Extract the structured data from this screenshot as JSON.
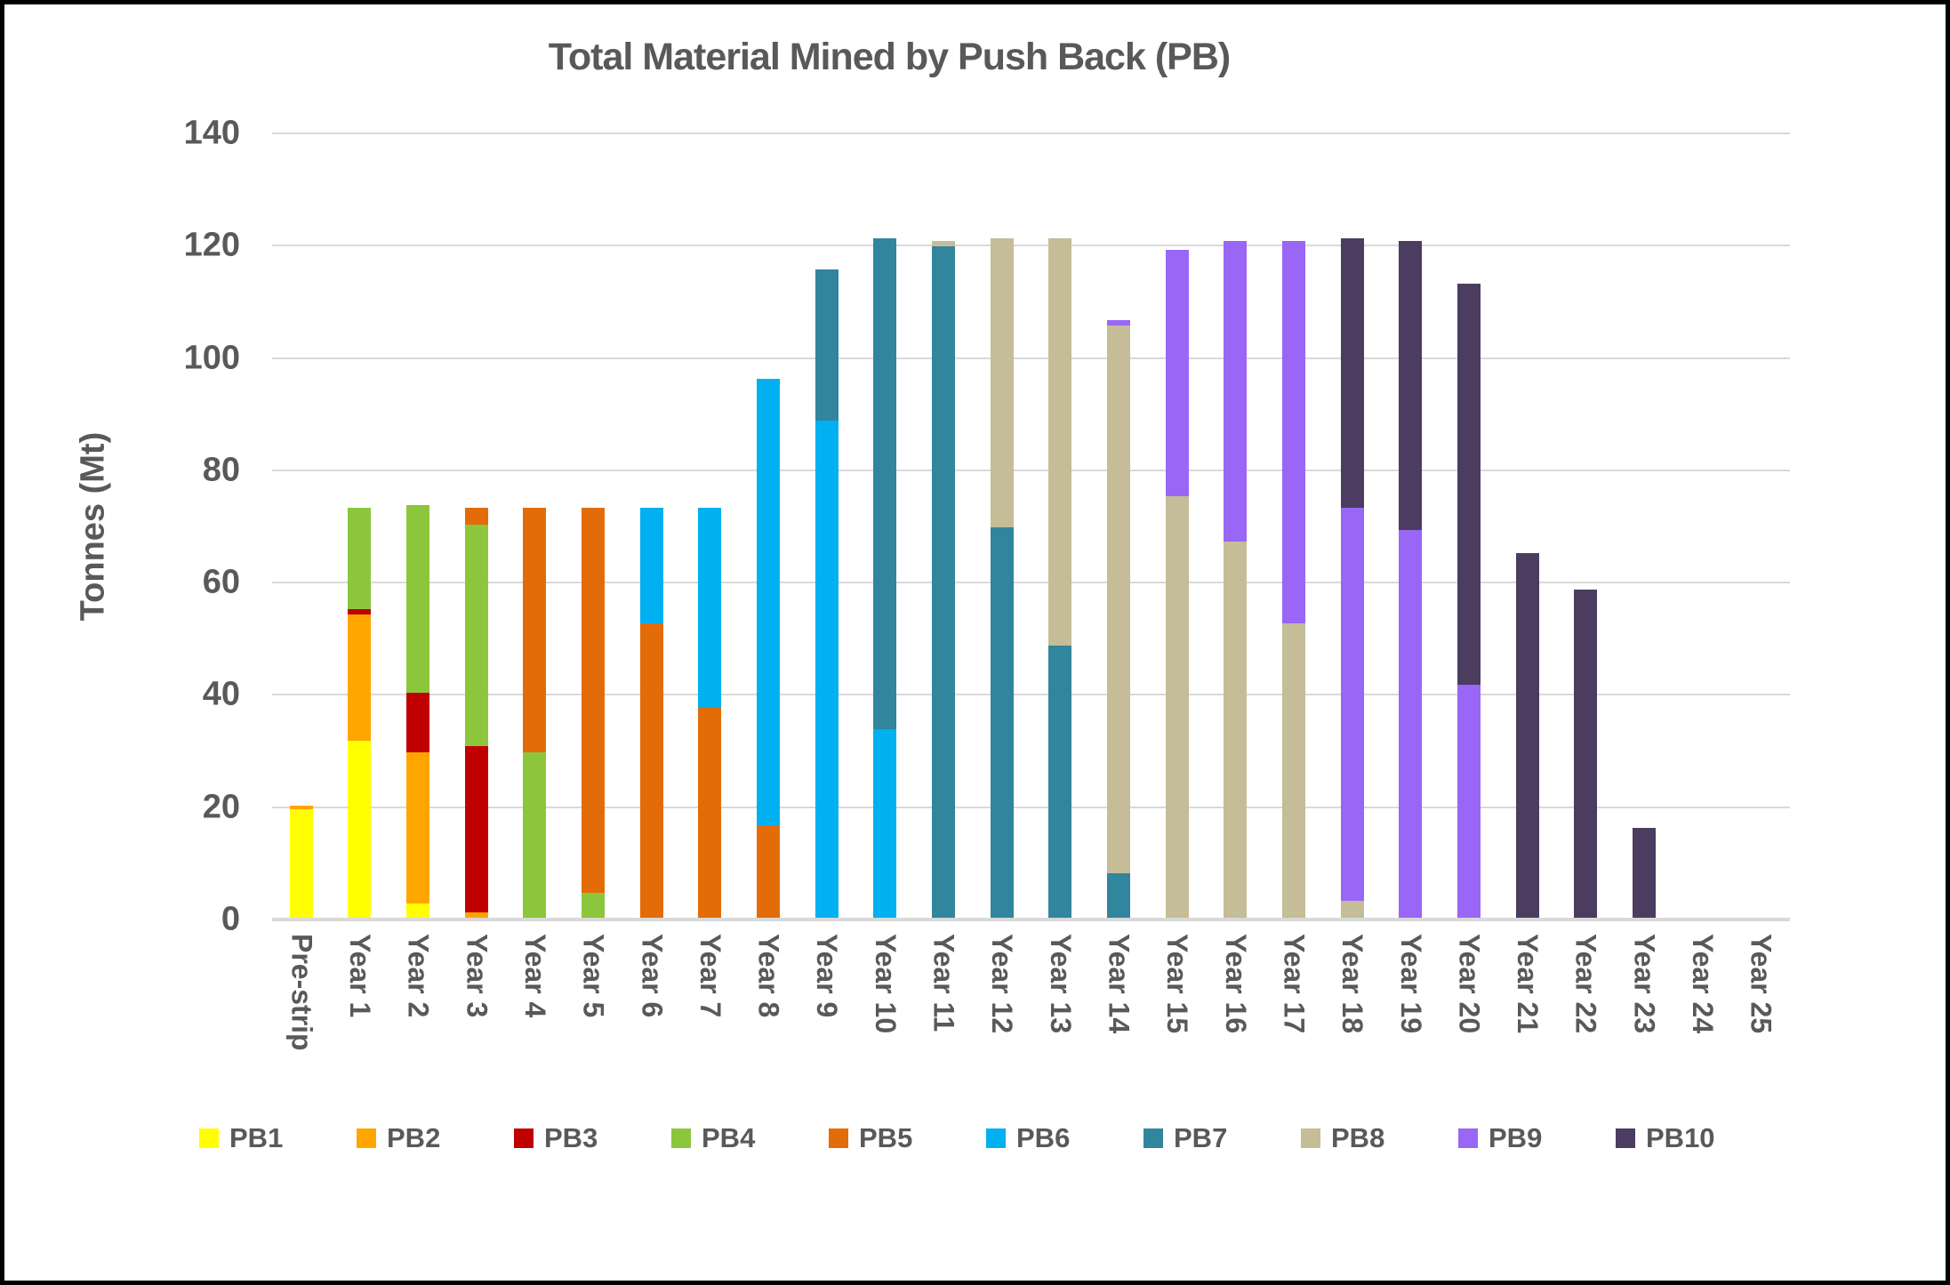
{
  "title": "Total Material Mined by Push Back (PB)",
  "y_axis": {
    "title": "Tonnes (Mt)",
    "ticks": [
      0,
      20,
      40,
      60,
      80,
      100,
      120,
      140
    ]
  },
  "colors": {
    "text": "#595959",
    "gridline": "#d9d9d9",
    "frame": "#000000"
  },
  "chart_data": {
    "type": "bar",
    "stacked": true,
    "title": "Total Material Mined by Push Back (PB)",
    "xlabel": "",
    "ylabel": "Tonnes (Mt)",
    "ylim": [
      0,
      140
    ],
    "grid": true,
    "legend_position": "bottom",
    "categories": [
      "Pre-strip",
      "Year 1",
      "Year 2",
      "Year 3",
      "Year 4",
      "Year 5",
      "Year 6",
      "Year 7",
      "Year 8",
      "Year 9",
      "Year 10",
      "Year 11",
      "Year 12",
      "Year 13",
      "Year 14",
      "Year 15",
      "Year 16",
      "Year 17",
      "Year 18",
      "Year 19",
      "Year 20",
      "Year 21",
      "Year 22",
      "Year 23",
      "Year 24",
      "Year 25"
    ],
    "series": [
      {
        "name": "PB1",
        "color": "#FFFF00",
        "values": [
          19.3,
          31.5,
          2.5,
          0,
          0,
          0,
          0,
          0,
          0,
          0,
          0,
          0,
          0,
          0,
          0,
          0,
          0,
          0,
          0,
          0,
          0,
          0,
          0,
          0,
          0,
          0
        ]
      },
      {
        "name": "PB2",
        "color": "#FFA500",
        "values": [
          0.7,
          22.5,
          27,
          1,
          0,
          0,
          0,
          0,
          0,
          0,
          0,
          0,
          0,
          0,
          0,
          0,
          0,
          0,
          0,
          0,
          0,
          0,
          0,
          0,
          0,
          0
        ]
      },
      {
        "name": "PB3",
        "color": "#C00000",
        "values": [
          0,
          1,
          10.5,
          29.5,
          0,
          0,
          0,
          0,
          0,
          0,
          0,
          0,
          0,
          0,
          0,
          0,
          0,
          0,
          0,
          0,
          0,
          0,
          0,
          0,
          0,
          0
        ]
      },
      {
        "name": "PB4",
        "color": "#8CC63C",
        "values": [
          0,
          18,
          33.5,
          39.5,
          29.5,
          4.5,
          0,
          0,
          0,
          0,
          0,
          0,
          0,
          0,
          0,
          0,
          0,
          0,
          0,
          0,
          0,
          0,
          0,
          0,
          0,
          0
        ]
      },
      {
        "name": "PB5",
        "color": "#E36C09",
        "values": [
          0,
          0,
          0,
          3,
          43.5,
          68.5,
          52.5,
          37.5,
          16.5,
          0,
          0,
          0,
          0,
          0,
          0,
          0,
          0,
          0,
          0,
          0,
          0,
          0,
          0,
          0,
          0,
          0
        ]
      },
      {
        "name": "PB6",
        "color": "#00B0F0",
        "values": [
          0,
          0,
          0,
          0,
          0,
          0,
          20.5,
          35.5,
          79.5,
          88.5,
          33.5,
          0,
          0,
          0,
          0,
          0,
          0,
          0,
          0,
          0,
          0,
          0,
          0,
          0,
          0,
          0
        ]
      },
      {
        "name": "PB7",
        "color": "#31859C",
        "values": [
          0,
          0,
          0,
          0,
          0,
          0,
          0,
          0,
          0,
          27,
          87.5,
          119.5,
          69.5,
          48.5,
          8,
          0,
          0,
          0,
          0,
          0,
          0,
          0,
          0,
          0,
          0,
          0
        ]
      },
      {
        "name": "PB8",
        "color": "#C4BD97",
        "values": [
          0,
          0,
          0,
          0,
          0,
          0,
          0,
          0,
          0,
          0,
          0,
          1,
          51.5,
          72.5,
          97.5,
          75,
          67,
          52.5,
          3,
          0,
          0,
          0,
          0,
          0,
          0,
          0
        ]
      },
      {
        "name": "PB9",
        "color": "#9966F5",
        "values": [
          0,
          0,
          0,
          0,
          0,
          0,
          0,
          0,
          0,
          0,
          0,
          0,
          0,
          0,
          1,
          44,
          53.5,
          68,
          70,
          69,
          41.5,
          0,
          0,
          0,
          0,
          0
        ]
      },
      {
        "name": "PB10",
        "color": "#4B3C60",
        "values": [
          0,
          0,
          0,
          0,
          0,
          0,
          0,
          0,
          0,
          0,
          0,
          0,
          0,
          0,
          0,
          0,
          0,
          0,
          48,
          51.5,
          71.5,
          65,
          58.5,
          16,
          0,
          0
        ]
      }
    ]
  }
}
